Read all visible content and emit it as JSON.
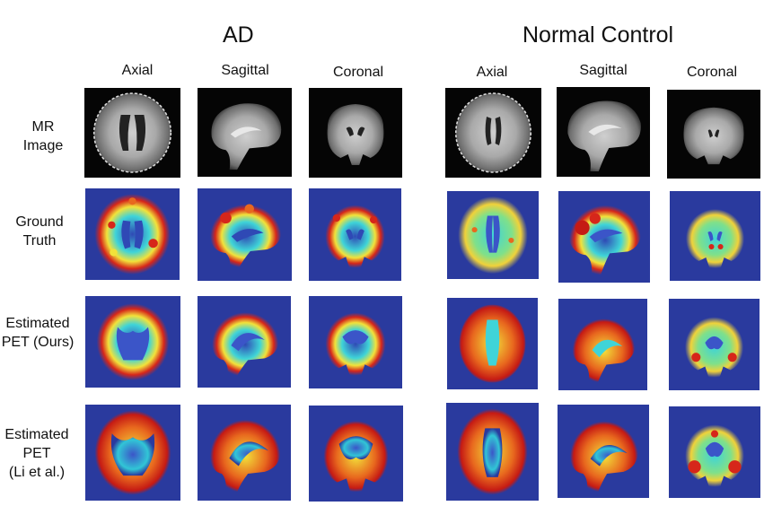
{
  "groups": {
    "ad": "AD",
    "nc": "Normal Control"
  },
  "views": {
    "axial": "Axial",
    "sagittal": "Sagittal",
    "coronal": "Coronal"
  },
  "rows": {
    "mr": {
      "line1": "MR",
      "line2": "Image"
    },
    "gt": {
      "line1": "Ground",
      "line2": "Truth"
    },
    "ours": {
      "line1": "Estimated",
      "line2": "PET (Ours)"
    },
    "li": {
      "line1": "Estimated",
      "line2": "PET",
      "line3": "(Li et al.)"
    }
  },
  "colors": {
    "mr_background": "#050505",
    "pet_background": "#2a3a9e",
    "pet_low": "#3fd4d8",
    "pet_mid": "#f2e23a",
    "pet_high": "#d6261a"
  }
}
